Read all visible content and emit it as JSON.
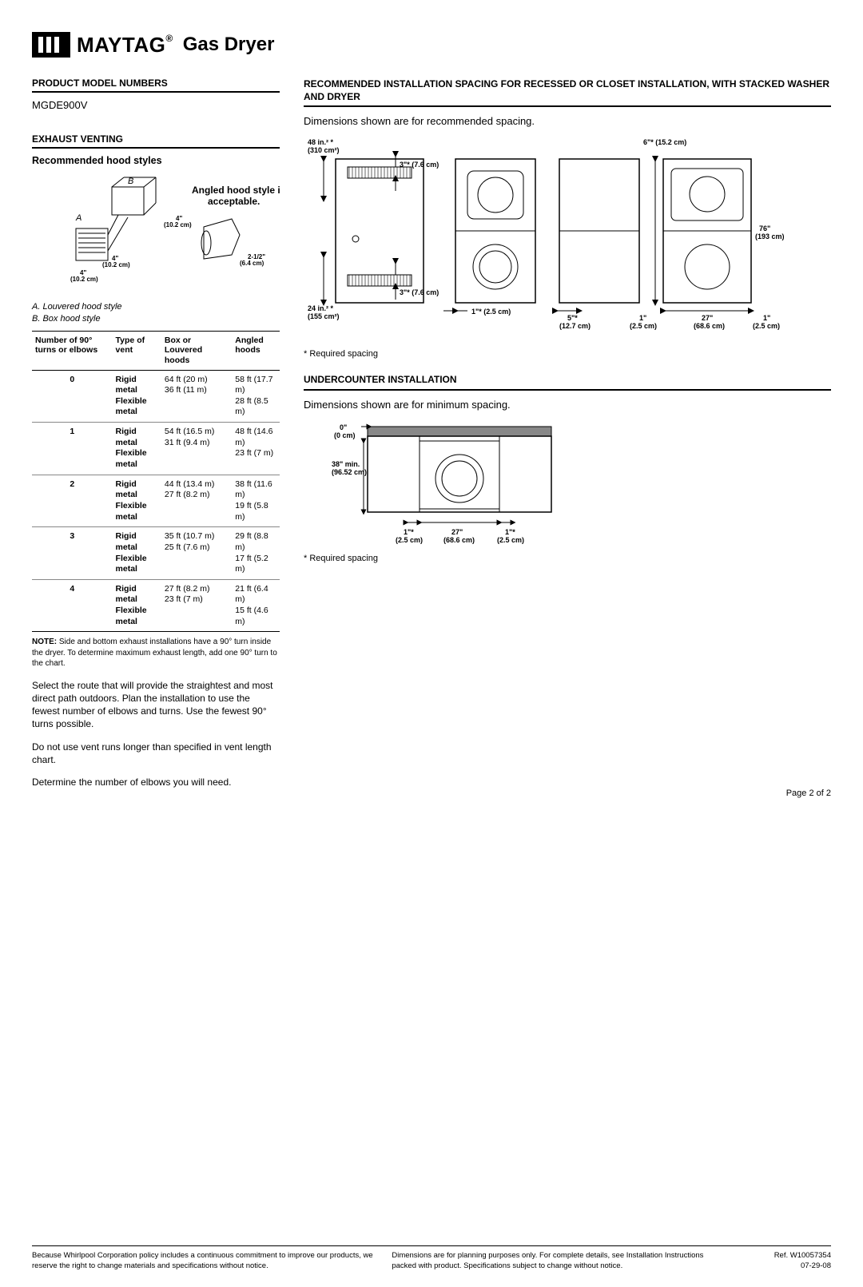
{
  "header": {
    "brand": "MAYTAG",
    "brand_reg": "®",
    "product": "Gas Dryer"
  },
  "left": {
    "model_title": "PRODUCT MODEL NUMBERS",
    "model": "MGDE900V",
    "exhaust_title": "EXHAUST VENTING",
    "hood_title": "Recommended hood styles",
    "angled_note": "Angled hood style is acceptable.",
    "hood_dims": {
      "four_in": "4\"",
      "four_cm": "(10.2 cm)",
      "angle_w": "2-1/2\"",
      "angle_cm": "(6.4 cm)",
      "label_a": "A",
      "label_b": "B"
    },
    "legend_a": "A. Louvered hood style",
    "legend_b": "B. Box hood style",
    "table": {
      "columns": [
        "Number of 90° turns or elbows",
        "Type of vent",
        "Box or Louvered hoods",
        "Angled hoods"
      ],
      "rows": [
        {
          "n": "0",
          "t1": "Rigid metal",
          "t2": "Flexible metal",
          "b1": "64 ft (20 m)",
          "b2": "36 ft (11 m)",
          "a1": "58 ft (17.7 m)",
          "a2": "28 ft (8.5 m)"
        },
        {
          "n": "1",
          "t1": "Rigid metal",
          "t2": "Flexible metal",
          "b1": "54 ft (16.5 m)",
          "b2": "31 ft (9.4 m)",
          "a1": "48 ft (14.6 m)",
          "a2": "23 ft (7 m)"
        },
        {
          "n": "2",
          "t1": "Rigid metal",
          "t2": "Flexible metal",
          "b1": "44 ft (13.4 m)",
          "b2": "27 ft (8.2 m)",
          "a1": "38 ft (11.6 m)",
          "a2": "19 ft (5.8 m)"
        },
        {
          "n": "3",
          "t1": "Rigid metal",
          "t2": "Flexible metal",
          "b1": "35 ft (10.7 m)",
          "b2": "25 ft (7.6 m)",
          "a1": "29 ft (8.8 m)",
          "a2": "17 ft (5.2 m)"
        },
        {
          "n": "4",
          "t1": "Rigid metal",
          "t2": "Flexible metal",
          "b1": "27 ft (8.2 m)",
          "b2": "23 ft (7 m)",
          "a1": "21 ft (6.4 m)",
          "a2": "15 ft (4.6 m)"
        }
      ]
    },
    "note": "NOTE: Side and bottom exhaust installations have a 90° turn inside the dryer. To determine maximum exhaust length, add one 90° turn to the chart.",
    "p1": "Select the route that will provide the straightest and most direct path outdoors.  Plan the installation to use the fewest number of elbows and turns. Use the fewest 90° turns possible.",
    "p2": "Do not use vent runs longer than specified in vent length chart.",
    "p3": "Determine the number of elbows you will need."
  },
  "right": {
    "title1": "RECOMMENDED INSTALLATION SPACING FOR RECESSED OR CLOSET INSTALLATION, WITH STACKED WASHER AND DRYER",
    "desc1": "Dimensions shown are for recommended spacing.",
    "req": "* Required spacing",
    "title2": "UNDERCOUNTER INSTALLATION",
    "desc2": "Dimensions shown are for minimum spacing.",
    "closet": {
      "top_area": "48 in.² *",
      "top_area_cm": "(310 cm²)",
      "vent_3": "3\"* (7.6 cm)",
      "bottom_area": "24 in.² *",
      "bottom_area_cm": "(155 cm²)",
      "gap_1": "1\"* (2.5 cm)",
      "top_6": "6\"* (15.2 cm)",
      "height_76": "76\"",
      "height_76_cm": "(193 cm)",
      "d5": "5\"*",
      "d5_cm": "(12.7 cm)",
      "d1": "1\"",
      "d1_cm": "(2.5 cm)",
      "d27": "27\"",
      "d27_cm": "(68.6 cm)"
    },
    "under": {
      "top_0": "0\"",
      "top_0_cm": "(0 cm)",
      "h38": "38\" min.",
      "h38_cm": "(96.52 cm)",
      "w1": "1\"*",
      "w1_cm": "(2.5 cm)",
      "w27": "27\"",
      "w27_cm": "(68.6 cm)"
    }
  },
  "footer": {
    "page": "Page 2 of 2",
    "f1": "Because Whirlpool Corporation policy includes a continuous commitment to improve our products, we reserve the right to change materials and specifications without notice.",
    "f2": "Dimensions are for planning purposes only.  For complete details, see Installation Instructions packed with product.  Specifications subject to change without notice.",
    "f3a": "Ref. W10057354",
    "f3b": "07-29-08"
  }
}
